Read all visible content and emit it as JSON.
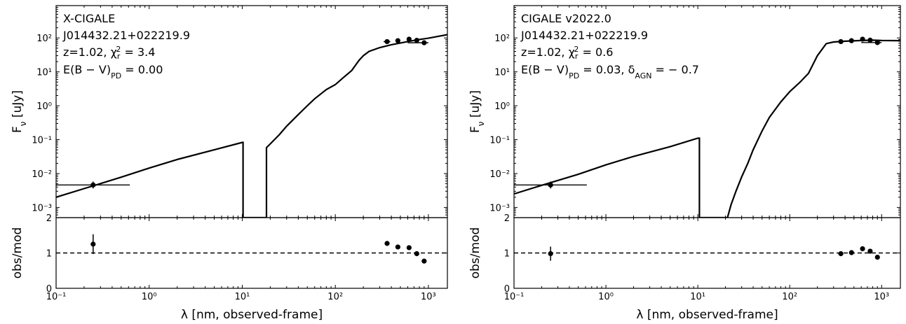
{
  "figure": {
    "xlabel": "λ [nm, observed-frame]",
    "ylabel_top": "Fν [uJy]",
    "ylabel_bottom": "obs/mod"
  },
  "chart_data": [
    {
      "type": "line",
      "panel": "left",
      "annotation": {
        "code": "X-CIGALE",
        "source": "J014432.21+022219.9",
        "fit": "z=1.02, χr2 = 3.4",
        "extra": "E(B − V)PD = 0.00"
      },
      "xscale": "log",
      "yscale": "log",
      "xlim": [
        0.1,
        1600
      ],
      "ylim_top": [
        0.0005,
        900
      ],
      "ylim_bottom": [
        0,
        2
      ],
      "x_ticks": [
        "10⁻¹",
        "10⁰",
        "10¹",
        "10²",
        "10³"
      ],
      "y_ticks_top": [
        "10⁻³",
        "10⁻²",
        "10⁻¹",
        "10⁰",
        "10¹",
        "10²"
      ],
      "y_ticks_bottom": [
        "0",
        "1",
        "2"
      ],
      "model_sed": {
        "x": [
          0.1,
          0.2,
          0.5,
          1,
          2,
          5,
          10,
          10.2,
          10.2,
          18.2,
          18.2,
          20,
          25,
          30,
          40,
          50,
          60,
          80,
          100,
          120,
          150,
          180,
          200,
          230,
          300,
          400,
          600,
          800,
          1000,
          1600
        ],
        "y": [
          0.002,
          0.0036,
          0.0078,
          0.0145,
          0.026,
          0.05,
          0.083,
          0.083,
          0.0005,
          0.0005,
          0.058,
          0.075,
          0.14,
          0.25,
          0.55,
          1.0,
          1.6,
          3.0,
          4.2,
          6.5,
          11,
          22,
          30,
          40,
          52,
          63,
          78,
          90,
          98,
          125
        ]
      },
      "observed": [
        {
          "x": 0.25,
          "y": 0.0046,
          "xerr_low": 0.1,
          "xerr_high": 0.62
        },
        {
          "x": 360,
          "y": 78,
          "xerr_low": 330,
          "xerr_high": 390
        },
        {
          "x": 470,
          "y": 83
        },
        {
          "x": 620,
          "y": 92
        },
        {
          "x": 750,
          "y": 85
        },
        {
          "x": 900,
          "y": 72,
          "xerr_low": 600,
          "xerr_high": 1000
        }
      ],
      "residuals": [
        {
          "x": 0.25,
          "y": 1.25,
          "err": 0.28
        },
        {
          "x": 360,
          "y": 1.27
        },
        {
          "x": 470,
          "y": 1.17
        },
        {
          "x": 620,
          "y": 1.15
        },
        {
          "x": 750,
          "y": 0.98
        },
        {
          "x": 900,
          "y": 0.77
        }
      ],
      "reference_line": 1
    },
    {
      "type": "line",
      "panel": "right",
      "annotation": {
        "code": "CIGALE v2022.0",
        "source": "J014432.21+022219.9",
        "fit": "z=1.02, χr2 = 0.6",
        "extra": "E(B − V)PD = 0.03,  δAGN = − 0.7"
      },
      "xscale": "log",
      "yscale": "log",
      "xlim": [
        0.1,
        1600
      ],
      "ylim_top": [
        0.0005,
        900
      ],
      "ylim_bottom": [
        0,
        2
      ],
      "x_ticks": [
        "10⁻¹",
        "10⁰",
        "10¹",
        "10²",
        "10³"
      ],
      "y_ticks_top": [
        "10⁻³",
        "10⁻²",
        "10⁻¹",
        "10⁰",
        "10¹",
        "10²"
      ],
      "y_ticks_bottom": [
        "0",
        "1",
        "2"
      ],
      "model_sed": {
        "x": [
          0.1,
          0.2,
          0.5,
          1,
          2,
          5,
          10,
          10.4,
          10.4,
          21,
          21,
          23,
          26,
          30,
          35,
          40,
          50,
          60,
          80,
          100,
          130,
          160,
          200,
          250,
          300,
          400,
          600,
          800,
          1000,
          1600
        ],
        "y": [
          0.0025,
          0.0045,
          0.0095,
          0.018,
          0.032,
          0.062,
          0.11,
          0.11,
          0.0005,
          0.0005,
          0.0005,
          0.0012,
          0.003,
          0.008,
          0.02,
          0.05,
          0.18,
          0.45,
          1.3,
          2.6,
          5,
          9,
          30,
          68,
          76,
          80,
          84,
          86,
          84,
          83
        ]
      },
      "observed": [
        {
          "x": 0.25,
          "y": 0.0046,
          "xerr_low": 0.1,
          "xerr_high": 0.62
        },
        {
          "x": 360,
          "y": 78,
          "xerr_low": 330,
          "xerr_high": 390
        },
        {
          "x": 470,
          "y": 83
        },
        {
          "x": 620,
          "y": 92
        },
        {
          "x": 750,
          "y": 86
        },
        {
          "x": 900,
          "y": 73,
          "xerr_low": 600,
          "xerr_high": 1000
        }
      ],
      "residuals": [
        {
          "x": 0.25,
          "y": 0.98,
          "err": 0.2
        },
        {
          "x": 360,
          "y": 0.98
        },
        {
          "x": 470,
          "y": 1.01
        },
        {
          "x": 620,
          "y": 1.12
        },
        {
          "x": 750,
          "y": 1.05
        },
        {
          "x": 900,
          "y": 0.88
        }
      ],
      "reference_line": 1
    }
  ]
}
